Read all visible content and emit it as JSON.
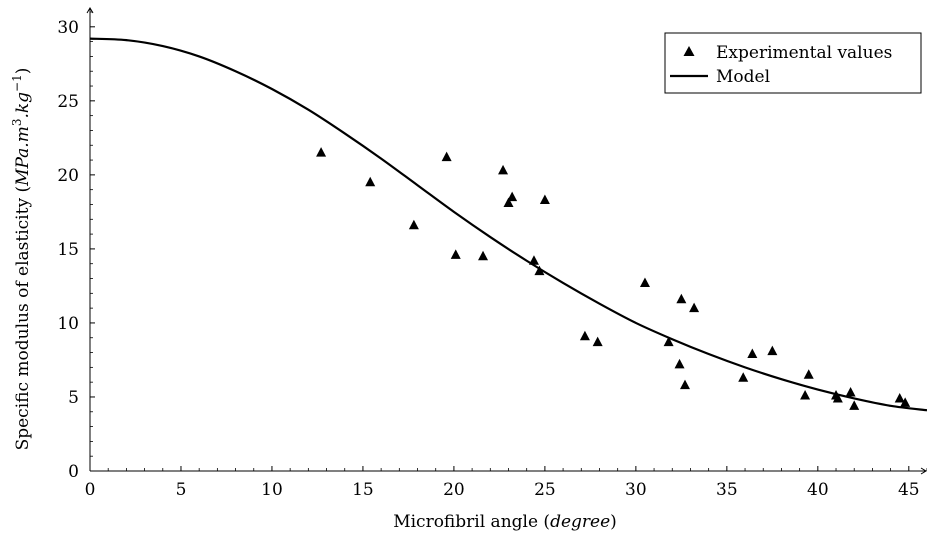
{
  "chart_data": {
    "type": "scatter",
    "xlabel": "Microfibril angle (",
    "xlabel_unit": "degree",
    "xlabel_close": ")",
    "ylabel": "Specific modulus of elasticity (",
    "ylabel_unit": "MPa.m",
    "ylabel_sup1": "3",
    "ylabel_mid": ".kg",
    "ylabel_sup2": "−1",
    "ylabel_close": ")",
    "xlim": [
      0,
      46
    ],
    "ylim": [
      0,
      31
    ],
    "x_ticks": [
      0,
      5,
      10,
      15,
      20,
      25,
      30,
      35,
      40,
      45
    ],
    "y_ticks": [
      0,
      5,
      10,
      15,
      20,
      25,
      30
    ],
    "grid": false,
    "legend_position": "top-right",
    "series": [
      {
        "name": "Experimental values",
        "kind": "scatter",
        "marker": "triangle",
        "color": "#000000",
        "points": [
          [
            12.7,
            21.5
          ],
          [
            15.4,
            19.5
          ],
          [
            17.8,
            16.6
          ],
          [
            19.6,
            21.2
          ],
          [
            20.1,
            14.6
          ],
          [
            21.6,
            14.5
          ],
          [
            22.7,
            20.3
          ],
          [
            23.0,
            18.1
          ],
          [
            23.2,
            18.5
          ],
          [
            24.4,
            14.2
          ],
          [
            24.7,
            13.5
          ],
          [
            25.0,
            18.3
          ],
          [
            27.2,
            9.1
          ],
          [
            27.9,
            8.7
          ],
          [
            30.5,
            12.7
          ],
          [
            31.8,
            8.7
          ],
          [
            32.4,
            7.2
          ],
          [
            32.5,
            11.6
          ],
          [
            32.7,
            5.8
          ],
          [
            33.2,
            11.0
          ],
          [
            35.9,
            6.3
          ],
          [
            36.4,
            7.9
          ],
          [
            37.5,
            8.1
          ],
          [
            39.3,
            5.1
          ],
          [
            39.5,
            6.5
          ],
          [
            41.0,
            5.1
          ],
          [
            41.1,
            4.9
          ],
          [
            41.8,
            5.3
          ],
          [
            42.0,
            4.4
          ],
          [
            44.5,
            4.9
          ],
          [
            44.8,
            4.6
          ]
        ]
      },
      {
        "name": "Model",
        "kind": "line",
        "color": "#000000",
        "points": [
          [
            0,
            29.2
          ],
          [
            2,
            29.1
          ],
          [
            4,
            28.7
          ],
          [
            6,
            28.0
          ],
          [
            8,
            27.0
          ],
          [
            10,
            25.8
          ],
          [
            12,
            24.4
          ],
          [
            14,
            22.8
          ],
          [
            16,
            21.1
          ],
          [
            18,
            19.3
          ],
          [
            20,
            17.5
          ],
          [
            22,
            15.8
          ],
          [
            24,
            14.2
          ],
          [
            26,
            12.7
          ],
          [
            28,
            11.3
          ],
          [
            30,
            10.0
          ],
          [
            32,
            8.9
          ],
          [
            34,
            7.9
          ],
          [
            36,
            7.0
          ],
          [
            38,
            6.2
          ],
          [
            40,
            5.5
          ],
          [
            42,
            4.9
          ],
          [
            44,
            4.4
          ],
          [
            46,
            4.1
          ]
        ]
      }
    ]
  }
}
